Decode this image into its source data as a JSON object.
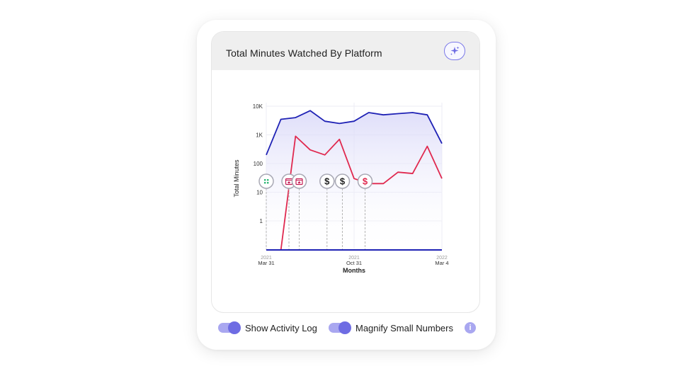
{
  "header": {
    "title": "Total Minutes Watched By Platform",
    "magic_icon": "sparkles-icon"
  },
  "footer": {
    "toggles": [
      {
        "label": "Show Activity Log",
        "on": true
      },
      {
        "label": "Magnify Small Numbers",
        "on": true
      }
    ],
    "info_icon": "i"
  },
  "colors": {
    "series_blue": "#1f22b5",
    "series_red": "#e0294f",
    "accent": "#6e6ce3"
  },
  "chart_data": {
    "type": "line",
    "ylabel": "Total Minutes",
    "xlabel": "Months",
    "yscale": "log",
    "y_ticks": [
      "10K",
      "1K",
      "100",
      "10",
      "1"
    ],
    "x_ticks": [
      {
        "year": "2021",
        "label": "Mar 31"
      },
      {
        "year": "2021",
        "label": "Oct 31"
      },
      {
        "year": "2022",
        "label": "Mar 4"
      }
    ],
    "x_count": 13,
    "series": [
      {
        "values": [
          200,
          3500,
          4000,
          7000,
          3000,
          2500,
          3000,
          6000,
          5000,
          5500,
          6000,
          5000,
          500
        ]
      },
      {
        "values": [
          0,
          0,
          900,
          300,
          200,
          700,
          30,
          20,
          20,
          50,
          45,
          400,
          30
        ]
      }
    ],
    "annotations": [
      {
        "icon": "grid-icon",
        "color": "#2bb673",
        "x_index": 0
      },
      {
        "icon": "star-calendar-icon",
        "color": "#c41e55",
        "x_index": 1.55
      },
      {
        "icon": "star-calendar-icon",
        "color": "#c41e55",
        "x_index": 2.25
      },
      {
        "icon": "dollar-icon",
        "color": "#222222",
        "x_index": 4.15
      },
      {
        "icon": "dollar-icon",
        "color": "#222222",
        "x_index": 5.2
      },
      {
        "icon": "dollar-icon",
        "color": "#e0294f",
        "x_index": 6.75
      }
    ]
  }
}
